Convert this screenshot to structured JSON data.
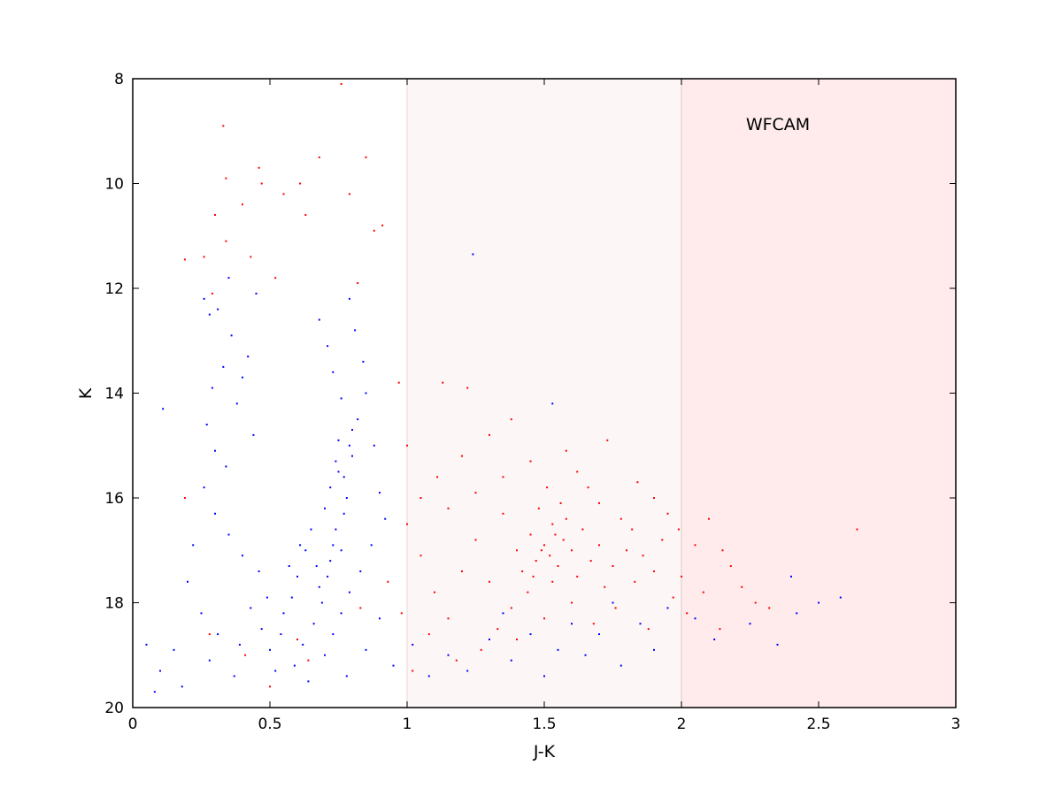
{
  "chart_data": {
    "type": "scatter",
    "title": "",
    "xlabel": "J-K",
    "ylabel": "K",
    "xlim": [
      0,
      3
    ],
    "ylim": [
      20,
      8
    ],
    "y_inverted": true,
    "grid": false,
    "xticks": [
      "0",
      "0.5",
      "1",
      "1.5",
      "2",
      "2.5",
      "3"
    ],
    "yticks": [
      "8",
      "10",
      "12",
      "14",
      "16",
      "18",
      "20"
    ],
    "annotation": "WFCAM",
    "shaded_regions": [
      {
        "x": [
          1,
          2
        ],
        "color": "#fdf6f6"
      },
      {
        "x": [
          2,
          3
        ],
        "color": "#ffebeb"
      }
    ],
    "series": [
      {
        "name": "blue",
        "color": "#0000ff",
        "points": [
          [
            0.11,
            14.3
          ],
          [
            1.24,
            11.35
          ],
          [
            0.26,
            12.2
          ],
          [
            0.28,
            12.5
          ],
          [
            0.31,
            12.4
          ],
          [
            0.35,
            11.8
          ],
          [
            0.36,
            12.9
          ],
          [
            0.33,
            13.5
          ],
          [
            0.29,
            13.9
          ],
          [
            0.27,
            14.6
          ],
          [
            0.3,
            15.1
          ],
          [
            0.34,
            15.4
          ],
          [
            0.38,
            14.2
          ],
          [
            0.4,
            13.7
          ],
          [
            0.42,
            13.3
          ],
          [
            0.45,
            12.1
          ],
          [
            0.44,
            14.8
          ],
          [
            0.26,
            15.8
          ],
          [
            0.3,
            16.3
          ],
          [
            0.35,
            16.7
          ],
          [
            0.4,
            17.1
          ],
          [
            0.22,
            16.9
          ],
          [
            0.2,
            17.6
          ],
          [
            0.25,
            18.2
          ],
          [
            0.31,
            18.6
          ],
          [
            0.28,
            19.1
          ],
          [
            0.37,
            19.4
          ],
          [
            0.15,
            18.9
          ],
          [
            0.1,
            19.3
          ],
          [
            0.05,
            18.8
          ],
          [
            0.08,
            19.7
          ],
          [
            0.18,
            19.6
          ],
          [
            0.47,
            18.5
          ],
          [
            0.5,
            18.9
          ],
          [
            0.52,
            19.3
          ],
          [
            0.55,
            18.2
          ],
          [
            0.58,
            17.9
          ],
          [
            0.6,
            17.5
          ],
          [
            0.63,
            17.0
          ],
          [
            0.65,
            16.6
          ],
          [
            0.67,
            17.3
          ],
          [
            0.7,
            16.2
          ],
          [
            0.72,
            15.8
          ],
          [
            0.74,
            15.3
          ],
          [
            0.75,
            14.9
          ],
          [
            0.77,
            15.6
          ],
          [
            0.78,
            16.0
          ],
          [
            0.8,
            15.2
          ],
          [
            0.82,
            14.5
          ],
          [
            0.76,
            14.1
          ],
          [
            0.73,
            13.6
          ],
          [
            0.71,
            13.1
          ],
          [
            0.68,
            12.6
          ],
          [
            0.79,
            12.2
          ],
          [
            0.81,
            12.8
          ],
          [
            0.84,
            13.4
          ],
          [
            0.85,
            14.0
          ],
          [
            0.88,
            15.0
          ],
          [
            0.9,
            15.9
          ],
          [
            0.92,
            16.4
          ],
          [
            0.87,
            16.9
          ],
          [
            0.83,
            17.4
          ],
          [
            0.79,
            17.8
          ],
          [
            0.76,
            18.2
          ],
          [
            0.73,
            18.6
          ],
          [
            0.69,
            18.0
          ],
          [
            0.66,
            18.4
          ],
          [
            0.62,
            18.8
          ],
          [
            0.59,
            19.2
          ],
          [
            0.64,
            19.5
          ],
          [
            0.7,
            19.0
          ],
          [
            0.78,
            19.4
          ],
          [
            0.85,
            18.9
          ],
          [
            0.9,
            18.3
          ],
          [
            0.74,
            16.6
          ],
          [
            0.76,
            17.0
          ],
          [
            0.72,
            17.2
          ],
          [
            0.68,
            17.7
          ],
          [
            0.77,
            16.3
          ],
          [
            0.79,
            15.0
          ],
          [
            0.8,
            14.7
          ],
          [
            0.75,
            15.5
          ],
          [
            0.73,
            16.9
          ],
          [
            0.71,
            17.5
          ],
          [
            0.61,
            16.9
          ],
          [
            0.57,
            17.3
          ],
          [
            0.54,
            18.6
          ],
          [
            0.49,
            17.9
          ],
          [
            0.46,
            17.4
          ],
          [
            0.43,
            18.1
          ],
          [
            0.39,
            18.8
          ],
          [
            0.95,
            19.2
          ],
          [
            1.02,
            18.8
          ],
          [
            1.08,
            19.4
          ],
          [
            1.15,
            19.0
          ],
          [
            1.22,
            19.3
          ],
          [
            1.3,
            18.7
          ],
          [
            1.38,
            19.1
          ],
          [
            1.45,
            18.6
          ],
          [
            1.5,
            19.4
          ],
          [
            1.55,
            18.9
          ],
          [
            1.6,
            18.4
          ],
          [
            1.65,
            19.0
          ],
          [
            1.7,
            18.6
          ],
          [
            1.78,
            19.2
          ],
          [
            1.85,
            18.4
          ],
          [
            1.9,
            18.9
          ],
          [
            1.95,
            18.1
          ],
          [
            2.05,
            18.3
          ],
          [
            2.12,
            18.7
          ],
          [
            2.25,
            18.4
          ],
          [
            2.4,
            17.5
          ],
          [
            2.42,
            18.2
          ],
          [
            2.5,
            18.0
          ],
          [
            2.58,
            17.9
          ],
          [
            2.35,
            18.8
          ],
          [
            1.53,
            14.2
          ],
          [
            1.35,
            18.2
          ],
          [
            1.75,
            18.0
          ]
        ]
      },
      {
        "name": "red",
        "color": "#ff0000",
        "points": [
          [
            0.76,
            8.1
          ],
          [
            0.33,
            8.9
          ],
          [
            0.46,
            9.7
          ],
          [
            0.68,
            9.5
          ],
          [
            0.85,
            9.5
          ],
          [
            0.34,
            9.9
          ],
          [
            0.47,
            10.0
          ],
          [
            0.55,
            10.2
          ],
          [
            0.61,
            10.0
          ],
          [
            0.79,
            10.2
          ],
          [
            0.3,
            10.6
          ],
          [
            0.4,
            10.4
          ],
          [
            0.63,
            10.6
          ],
          [
            0.91,
            10.8
          ],
          [
            0.34,
            11.1
          ],
          [
            0.43,
            11.4
          ],
          [
            0.52,
            11.8
          ],
          [
            0.19,
            11.45
          ],
          [
            0.26,
            11.4
          ],
          [
            0.82,
            11.9
          ],
          [
            0.88,
            10.9
          ],
          [
            0.29,
            12.1
          ],
          [
            0.19,
            16.0
          ],
          [
            0.28,
            18.6
          ],
          [
            0.41,
            19.0
          ],
          [
            0.5,
            19.6
          ],
          [
            0.6,
            18.7
          ],
          [
            0.83,
            18.1
          ],
          [
            0.64,
            19.1
          ],
          [
            0.97,
            13.8
          ],
          [
            1.13,
            13.8
          ],
          [
            1.22,
            13.9
          ],
          [
            1.0,
            15.0
          ],
          [
            1.11,
            15.6
          ],
          [
            1.2,
            15.2
          ],
          [
            1.3,
            14.8
          ],
          [
            1.38,
            14.5
          ],
          [
            1.45,
            15.3
          ],
          [
            1.58,
            15.1
          ],
          [
            1.66,
            15.8
          ],
          [
            1.73,
            14.9
          ],
          [
            1.84,
            15.7
          ],
          [
            1.95,
            16.3
          ],
          [
            2.05,
            16.9
          ],
          [
            2.1,
            16.4
          ],
          [
            2.18,
            17.3
          ],
          [
            2.22,
            17.7
          ],
          [
            2.27,
            18.0
          ],
          [
            2.32,
            18.1
          ],
          [
            2.64,
            16.6
          ],
          [
            1.0,
            16.5
          ],
          [
            1.05,
            17.1
          ],
          [
            1.1,
            17.8
          ],
          [
            1.15,
            18.3
          ],
          [
            1.2,
            17.4
          ],
          [
            1.25,
            16.8
          ],
          [
            1.3,
            17.6
          ],
          [
            1.35,
            16.3
          ],
          [
            1.4,
            17.0
          ],
          [
            1.42,
            17.4
          ],
          [
            1.45,
            16.7
          ],
          [
            1.47,
            17.2
          ],
          [
            1.5,
            16.9
          ],
          [
            1.52,
            17.1
          ],
          [
            1.53,
            16.5
          ],
          [
            1.55,
            17.3
          ],
          [
            1.57,
            16.8
          ],
          [
            1.6,
            17.0
          ],
          [
            1.62,
            17.5
          ],
          [
            1.64,
            16.6
          ],
          [
            1.67,
            17.2
          ],
          [
            1.7,
            16.9
          ],
          [
            1.72,
            17.7
          ],
          [
            1.75,
            17.3
          ],
          [
            1.78,
            16.4
          ],
          [
            1.8,
            17.0
          ],
          [
            1.83,
            17.6
          ],
          [
            1.86,
            17.1
          ],
          [
            1.9,
            17.4
          ],
          [
            1.93,
            16.8
          ],
          [
            1.97,
            17.9
          ],
          [
            2.0,
            17.5
          ],
          [
            1.48,
            16.2
          ],
          [
            1.51,
            15.8
          ],
          [
            1.56,
            16.1
          ],
          [
            1.44,
            17.8
          ],
          [
            1.38,
            18.1
          ],
          [
            1.33,
            18.5
          ],
          [
            1.27,
            18.9
          ],
          [
            1.18,
            19.1
          ],
          [
            1.08,
            18.6
          ],
          [
            0.98,
            18.2
          ],
          [
            0.93,
            17.6
          ],
          [
            1.02,
            19.3
          ],
          [
            1.4,
            18.7
          ],
          [
            1.5,
            18.3
          ],
          [
            1.6,
            18.0
          ],
          [
            1.68,
            18.4
          ],
          [
            1.76,
            18.1
          ],
          [
            1.88,
            18.5
          ],
          [
            2.02,
            18.2
          ],
          [
            2.08,
            17.8
          ],
          [
            2.14,
            18.5
          ],
          [
            1.25,
            15.9
          ],
          [
            1.15,
            16.2
          ],
          [
            1.05,
            16.0
          ],
          [
            1.35,
            15.6
          ],
          [
            1.62,
            15.5
          ],
          [
            1.7,
            16.1
          ],
          [
            1.82,
            16.6
          ],
          [
            1.9,
            16.0
          ],
          [
            1.99,
            16.6
          ],
          [
            2.15,
            17.0
          ],
          [
            1.53,
            17.6
          ],
          [
            1.46,
            17.5
          ],
          [
            1.58,
            16.4
          ],
          [
            1.49,
            17.0
          ],
          [
            1.54,
            16.7
          ]
        ]
      }
    ]
  }
}
